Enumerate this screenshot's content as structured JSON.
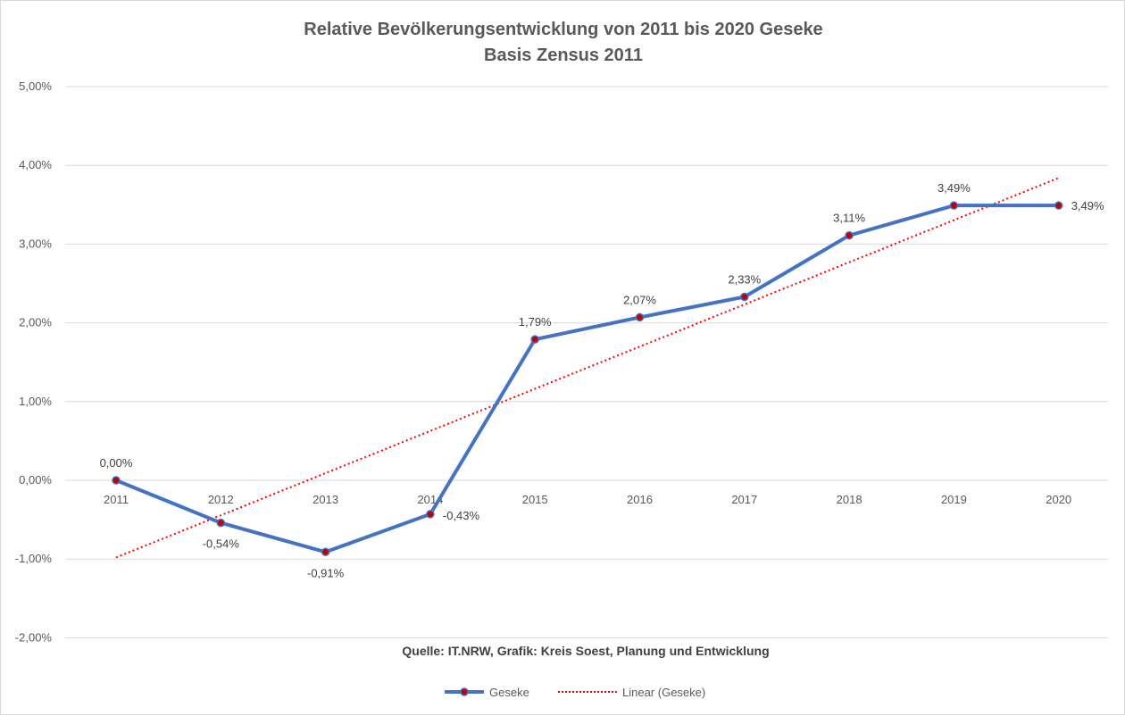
{
  "chart_data": {
    "type": "line",
    "title_line1": "Relative Bevölkerungsentwicklung von 2011 bis 2020 Geseke",
    "title_line2": "Basis Zensus 2011",
    "categories": [
      "2011",
      "2012",
      "2013",
      "2014",
      "2015",
      "2016",
      "2017",
      "2018",
      "2019",
      "2020"
    ],
    "series": [
      {
        "name": "Geseke",
        "values": [
          0.0,
          -0.54,
          -0.91,
          -0.43,
          1.79,
          2.07,
          2.33,
          3.11,
          3.49,
          3.49
        ],
        "data_labels": [
          "0,00%",
          "-0,54%",
          "-0,91%",
          "-0,43%",
          "1,79%",
          "2,07%",
          "2,33%",
          "3,11%",
          "3,49%",
          "3,49%"
        ],
        "line_color": "#4472c4",
        "marker_color": "#c00000"
      }
    ],
    "trendline": {
      "name": "Linear (Geseke)",
      "type": "linear",
      "start_value": -0.98,
      "end_value": 3.84,
      "color": "#ff0000"
    },
    "y_ticks": [
      {
        "value": 5,
        "label": "5,00%"
      },
      {
        "value": 4,
        "label": "4,00%"
      },
      {
        "value": 3,
        "label": "3,00%"
      },
      {
        "value": 2,
        "label": "2,00%"
      },
      {
        "value": 1,
        "label": "1,00%"
      },
      {
        "value": 0,
        "label": "0,00%"
      },
      {
        "value": -1,
        "label": "-1,00%"
      },
      {
        "value": -2,
        "label": "-2,00%"
      }
    ],
    "ylim": [
      -2,
      5
    ],
    "grid": true,
    "legend_position": "bottom",
    "source_note": "Quelle: IT.NRW, Grafik: Kreis Soest, Planung und Entwicklung"
  }
}
